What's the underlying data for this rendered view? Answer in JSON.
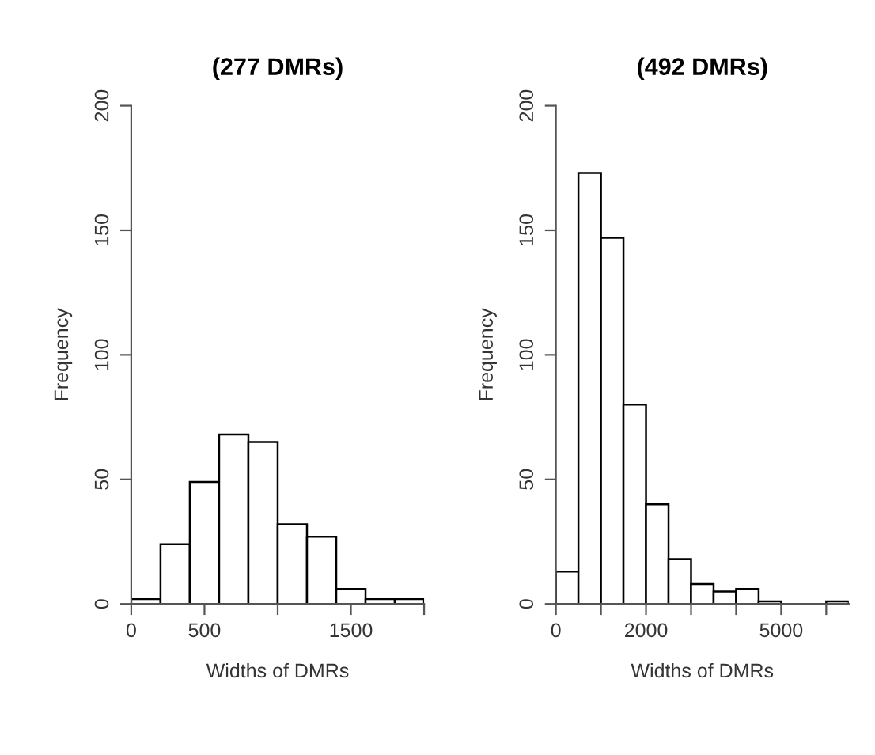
{
  "chart_data": [
    {
      "type": "histogram",
      "title": "(277 DMRs)",
      "xlabel": "Widths of DMRs",
      "ylabel": "Frequency",
      "color": "#ffffff",
      "bins": [
        0,
        200,
        400,
        600,
        800,
        1000,
        1200,
        1400,
        1600,
        1800,
        2000
      ],
      "values": [
        2,
        24,
        49,
        68,
        65,
        32,
        27,
        6,
        2,
        2
      ],
      "xlim": [
        0,
        2000
      ],
      "xticks": [
        0,
        500,
        {
          "value": 1000,
          "label": null
        },
        1500,
        {
          "value": 2000,
          "label": null
        }
      ],
      "ylim": [
        0,
        200
      ],
      "yticks": [
        0,
        50,
        100,
        150,
        200
      ],
      "grid": false
    },
    {
      "type": "histogram",
      "title": "(492 DMRs)",
      "xlabel": "Widths of DMRs",
      "ylabel": "Frequency",
      "color": "#ffffff",
      "bins": [
        0,
        500,
        1000,
        1500,
        2000,
        2500,
        3000,
        3500,
        4000,
        4500,
        5000,
        5500,
        6000,
        6500
      ],
      "values": [
        13,
        173,
        147,
        80,
        40,
        18,
        8,
        5,
        6,
        1,
        0,
        0,
        1
      ],
      "xlim": [
        0,
        6500
      ],
      "xticks": [
        0,
        {
          "value": 1000,
          "label": null
        },
        2000,
        {
          "value": 3000,
          "label": null
        },
        {
          "value": 4000,
          "label": null
        },
        5000,
        {
          "value": 6000,
          "label": null
        }
      ],
      "ylim": [
        0,
        200
      ],
      "yticks": [
        0,
        50,
        100,
        150,
        200
      ],
      "grid": false
    }
  ]
}
